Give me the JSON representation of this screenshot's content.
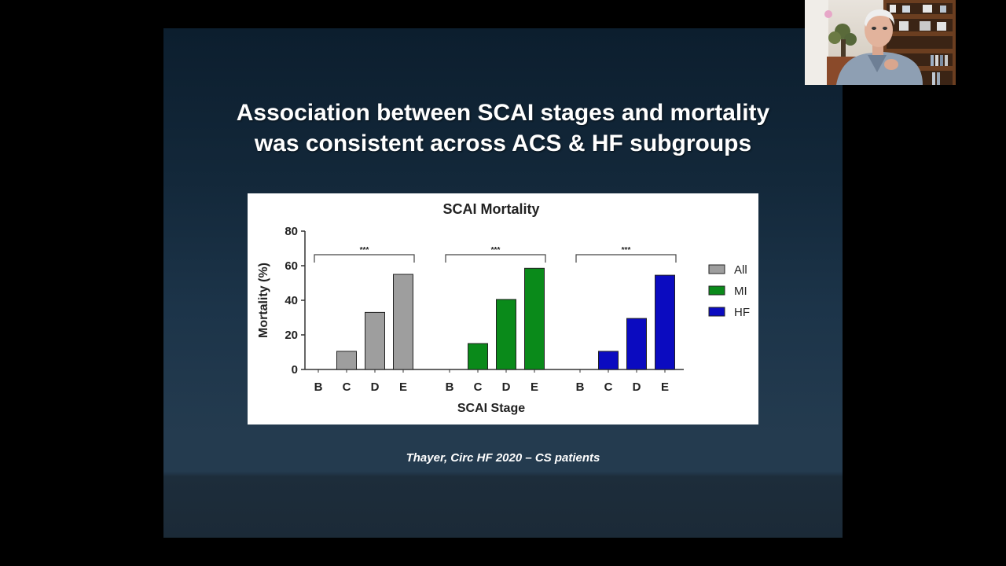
{
  "slide": {
    "title_line1": "Association between SCAI stages and mortality",
    "title_line2": "was consistent across ACS & HF subgroups",
    "citation": "Thayer, Circ HF 2020 – CS patients"
  },
  "chart_data": {
    "type": "bar",
    "title": "SCAI Mortality",
    "xlabel": "SCAI Stage",
    "ylabel": "Mortality (%)",
    "ylim": [
      0,
      80
    ],
    "yticks": [
      0,
      20,
      40,
      60,
      80
    ],
    "categories": [
      "B",
      "C",
      "D",
      "E"
    ],
    "significance": "***",
    "legend_position": "right",
    "series": [
      {
        "name": "All",
        "color": "#9e9e9e",
        "values": [
          0,
          10.5,
          33,
          55
        ]
      },
      {
        "name": "MI",
        "color": "#0a8a1a",
        "values": [
          0,
          15,
          40.5,
          58.5
        ]
      },
      {
        "name": "HF",
        "color": "#0b0bc0",
        "values": [
          0,
          10.5,
          29.5,
          54.5
        ]
      }
    ]
  },
  "webcam": {
    "icon": "presenter-video-icon"
  }
}
